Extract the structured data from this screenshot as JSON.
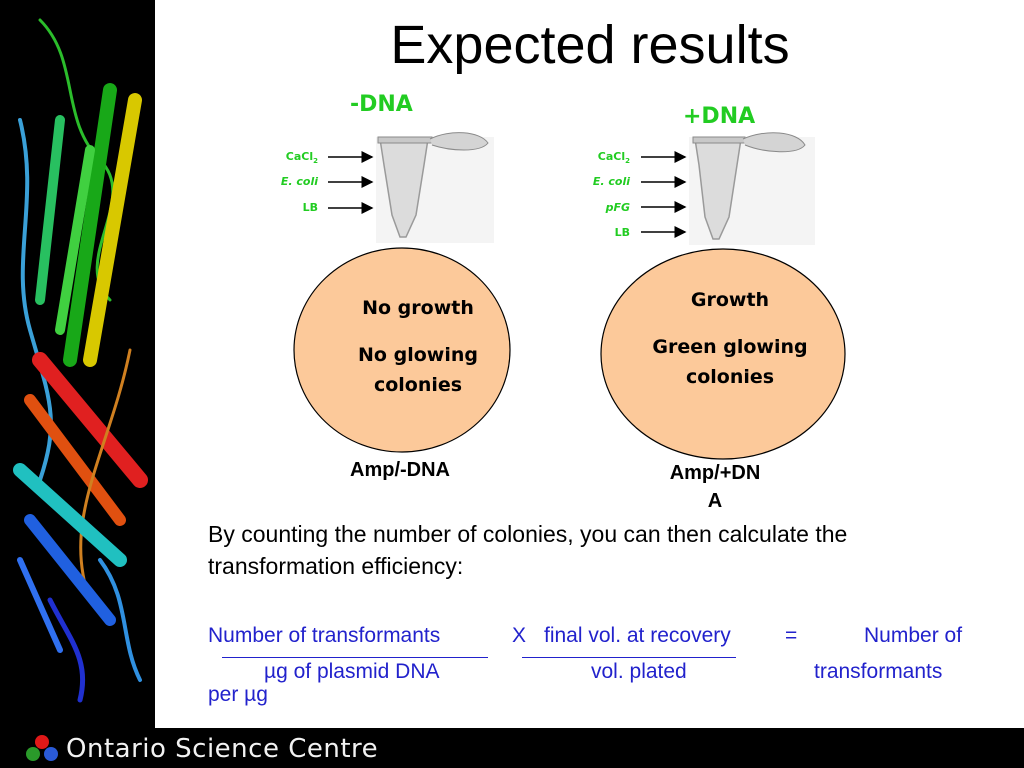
{
  "title": "Expected results",
  "left_tube": {
    "header": "-DNA",
    "labels": [
      "CaCl",
      "E. coli",
      "LB"
    ],
    "cacl_subscript": "2",
    "plate_lines": [
      "No growth",
      "No glowing",
      "colonies"
    ],
    "caption": "Amp/-DNA"
  },
  "right_tube": {
    "header": "+DNA",
    "labels": [
      "CaCl",
      "E. coli",
      "pFG",
      "LB"
    ],
    "cacl_subscript": "2",
    "plate_lines": [
      "Growth",
      "Green glowing",
      "colonies"
    ],
    "caption_line1": "Amp/+DN",
    "caption_line2": "A"
  },
  "body_text": "By counting the number of colonies, you can then calculate the transformation efficiency:",
  "formula": {
    "num1": "Number of transformants",
    "den1": "µg of plasmid DNA",
    "times": "X",
    "num2": "final vol. at recovery",
    "den2": "vol. plated",
    "equals": "=",
    "result_line1": "Number of",
    "result_line2": "transformants",
    "result_line3": "per µg"
  },
  "footer": {
    "org": "Ontario Science Centre"
  },
  "colors": {
    "green_label": "#22cc22",
    "formula_blue": "#2222cc",
    "plate_fill": "#fcc99a"
  }
}
